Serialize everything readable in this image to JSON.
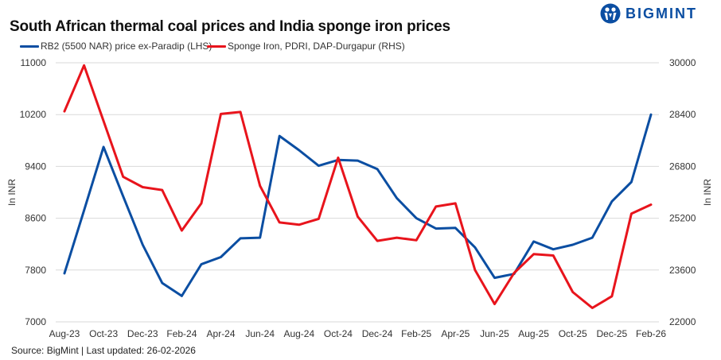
{
  "brand": {
    "name": "BIGMINT",
    "color": "#0b4ea2"
  },
  "source_note": "Source: BigMint | Last updated: 26-02-2026",
  "chart_data": {
    "type": "line",
    "title": "South African thermal coal prices and India sponge iron prices",
    "x": [
      "Aug-23",
      "Sep-23",
      "Oct-23",
      "Nov-23",
      "Dec-23",
      "Jan-24",
      "Feb-24",
      "Mar-24",
      "Apr-24",
      "May-24",
      "Jun-24",
      "Jul-24",
      "Aug-24",
      "Sep-24",
      "Oct-24",
      "Nov-24",
      "Dec-24",
      "Jan-25",
      "Feb-25",
      "Mar-25",
      "Apr-25",
      "May-25",
      "Jun-25",
      "Jul-25",
      "Aug-25",
      "Sep-25",
      "Oct-25",
      "Nov-25",
      "Dec-25",
      "Jan-26",
      "Feb-26"
    ],
    "xtick_labels": [
      "Aug-23",
      "Oct-23",
      "Dec-23",
      "Feb-24",
      "Apr-24",
      "Jun-24",
      "Aug-24",
      "Oct-24",
      "Dec-24",
      "Feb-25",
      "Apr-25",
      "Jun-25",
      "Aug-25",
      "Oct-25",
      "Dec-25",
      "Feb-26"
    ],
    "series": [
      {
        "name": "RB2 (5500 NAR) price ex-Paradip (LHS)",
        "axis": "left",
        "color": "#0b4ea2",
        "values": [
          7750,
          8720,
          9700,
          8940,
          8190,
          7600,
          7400,
          7890,
          8000,
          8290,
          8300,
          9870,
          9650,
          9410,
          9500,
          9490,
          9360,
          8910,
          8600,
          8440,
          8450,
          8150,
          7680,
          7740,
          8240,
          8120,
          8190,
          8300,
          8860,
          9160,
          10200
        ]
      },
      {
        "name": "Sponge Iron, PDRI, DAP-Durgapur (RHS)",
        "axis": "right",
        "color": "#e8141c",
        "values": [
          28500,
          29920,
          28200,
          26480,
          26160,
          26070,
          24820,
          25660,
          28420,
          28480,
          26200,
          25070,
          25000,
          25180,
          27070,
          25250,
          24500,
          24600,
          24520,
          25560,
          25660,
          23600,
          22550,
          23510,
          24090,
          24050,
          22920,
          22430,
          22790,
          25340,
          25620
        ]
      }
    ],
    "y_left": {
      "label": "In INR",
      "min": 7000,
      "max": 11000,
      "ticks": [
        7000,
        7800,
        8600,
        9400,
        10200,
        11000
      ]
    },
    "y_right": {
      "label": "In INR",
      "min": 22000,
      "max": 30000,
      "ticks": [
        22000,
        23600,
        25200,
        26800,
        28400,
        30000
      ]
    },
    "grid": true,
    "legend_position": "top-left"
  }
}
